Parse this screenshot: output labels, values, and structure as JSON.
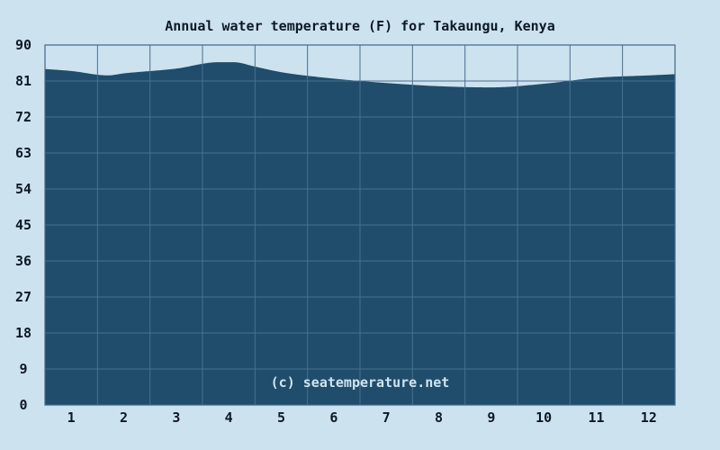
{
  "page": {
    "watermark": "(c) seatemperature.net"
  },
  "chart_data": {
    "type": "area",
    "title": "Annual water temperature (F) for Takaungu, Kenya",
    "xlabel": "",
    "ylabel": "",
    "unit": "F",
    "categories": [
      "1",
      "2",
      "3",
      "4",
      "5",
      "6",
      "7",
      "8",
      "9",
      "10",
      "11",
      "12"
    ],
    "series": [
      {
        "name": "Water temperature (F)",
        "values": [
          83.5,
          82.9,
          84.1,
          85.6,
          83.2,
          81.6,
          80.5,
          79.7,
          79.4,
          80.3,
          81.8,
          82.4
        ]
      }
    ],
    "curve_profile": [
      [
        0.0,
        84.0
      ],
      [
        0.5,
        83.5
      ],
      [
        1.2,
        82.4
      ],
      [
        1.5,
        82.9
      ],
      [
        2.5,
        84.1
      ],
      [
        3.3,
        85.7
      ],
      [
        3.6,
        85.7
      ],
      [
        4.0,
        84.6
      ],
      [
        4.5,
        83.2
      ],
      [
        5.5,
        81.6
      ],
      [
        6.5,
        80.5
      ],
      [
        7.5,
        79.7
      ],
      [
        8.5,
        79.4
      ],
      [
        9.5,
        80.3
      ],
      [
        10.5,
        81.8
      ],
      [
        11.5,
        82.4
      ],
      [
        12.0,
        82.7
      ]
    ],
    "y_ticks": [
      0,
      9,
      18,
      27,
      36,
      45,
      54,
      63,
      72,
      81,
      90
    ],
    "ylim": [
      0,
      90
    ],
    "grid": true,
    "legend_position": "none",
    "colors": {
      "background": "#cce2ee",
      "fill": "#1f4d6b",
      "grid": "#4a7090",
      "border": "#44688a",
      "text": "#0d1a26",
      "watermark": "#cfe4f0"
    }
  }
}
